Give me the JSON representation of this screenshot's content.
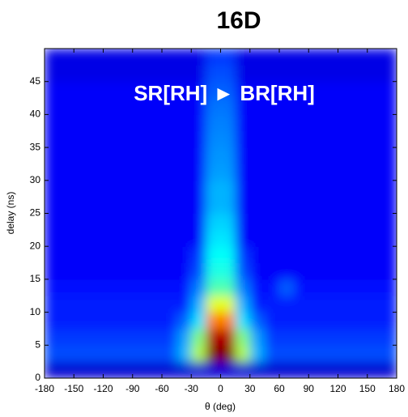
{
  "chart_data": {
    "type": "heatmap",
    "title": "16D",
    "annotation": "SR[RH] ► BR[RH]",
    "xlabel": "θ (deg)",
    "ylabel": "delay (ns)",
    "colormap": "jet",
    "xlim": [
      -180,
      180
    ],
    "ylim": [
      0,
      50
    ],
    "xticks": [
      -180,
      -150,
      -120,
      -90,
      -60,
      -30,
      0,
      30,
      60,
      90,
      120,
      150,
      180
    ],
    "yticks": [
      0,
      5,
      10,
      15,
      20,
      25,
      30,
      35,
      40,
      45
    ],
    "z": [
      [
        0.08,
        0.08,
        0.08,
        0.08,
        0.08,
        0.08,
        0.08,
        0.08,
        0.08,
        0.08,
        0.08,
        0.08,
        0.08,
        0.08,
        0.08,
        0.08,
        0.08,
        0.08,
        0.08,
        0.08,
        0.08,
        0.08,
        0.08,
        0.08
      ],
      [
        0.2,
        0.2,
        0.2,
        0.2,
        0.2,
        0.2,
        0.2,
        0.2,
        0.2,
        0.3,
        0.55,
        1,
        1,
        0.55,
        0.3,
        0.2,
        0.2,
        0.2,
        0.2,
        0.2,
        0.2,
        0.2,
        0.2,
        0.2
      ],
      [
        0.18,
        0.18,
        0.18,
        0.18,
        0.18,
        0.18,
        0.18,
        0.18,
        0.18,
        0.28,
        0.5,
        0.95,
        0.95,
        0.5,
        0.28,
        0.18,
        0.18,
        0.18,
        0.18,
        0.18,
        0.18,
        0.18,
        0.18,
        0.18
      ],
      [
        0.15,
        0.15,
        0.15,
        0.15,
        0.15,
        0.15,
        0.15,
        0.15,
        0.15,
        0.22,
        0.35,
        0.75,
        0.75,
        0.35,
        0.22,
        0.15,
        0.15,
        0.15,
        0.15,
        0.15,
        0.15,
        0.15,
        0.15,
        0.15
      ],
      [
        0.15,
        0.15,
        0.15,
        0.15,
        0.15,
        0.15,
        0.15,
        0.15,
        0.15,
        0.15,
        0.3,
        0.6,
        0.6,
        0.3,
        0.15,
        0.15,
        0.15,
        0.15,
        0.15,
        0.15,
        0.15,
        0.15,
        0.15,
        0.15
      ],
      [
        0.14,
        0.14,
        0.14,
        0.14,
        0.14,
        0.14,
        0.14,
        0.14,
        0.14,
        0.14,
        0.25,
        0.45,
        0.45,
        0.25,
        0.14,
        0.14,
        0.22,
        0.14,
        0.14,
        0.14,
        0.14,
        0.14,
        0.14,
        0.14
      ],
      [
        0.12,
        0.12,
        0.12,
        0.12,
        0.12,
        0.12,
        0.12,
        0.12,
        0.12,
        0.12,
        0.2,
        0.4,
        0.4,
        0.2,
        0.12,
        0.12,
        0.12,
        0.12,
        0.12,
        0.12,
        0.12,
        0.12,
        0.12,
        0.12
      ],
      [
        0.12,
        0.12,
        0.12,
        0.12,
        0.12,
        0.12,
        0.12,
        0.12,
        0.12,
        0.12,
        0.18,
        0.38,
        0.38,
        0.18,
        0.12,
        0.12,
        0.12,
        0.12,
        0.12,
        0.12,
        0.12,
        0.12,
        0.12,
        0.12
      ],
      [
        0.12,
        0.12,
        0.12,
        0.12,
        0.12,
        0.12,
        0.12,
        0.12,
        0.12,
        0.12,
        0.12,
        0.35,
        0.35,
        0.12,
        0.12,
        0.12,
        0.12,
        0.12,
        0.12,
        0.12,
        0.12,
        0.12,
        0.12,
        0.12
      ],
      [
        0.12,
        0.12,
        0.12,
        0.12,
        0.12,
        0.12,
        0.12,
        0.12,
        0.12,
        0.12,
        0.12,
        0.33,
        0.33,
        0.12,
        0.12,
        0.12,
        0.12,
        0.12,
        0.12,
        0.12,
        0.12,
        0.12,
        0.12,
        0.12
      ],
      [
        0.12,
        0.12,
        0.12,
        0.12,
        0.12,
        0.12,
        0.12,
        0.12,
        0.12,
        0.12,
        0.12,
        0.3,
        0.3,
        0.12,
        0.12,
        0.12,
        0.12,
        0.12,
        0.12,
        0.12,
        0.12,
        0.12,
        0.12,
        0.12
      ],
      [
        0.12,
        0.12,
        0.12,
        0.12,
        0.12,
        0.12,
        0.12,
        0.12,
        0.12,
        0.12,
        0.12,
        0.3,
        0.3,
        0.12,
        0.12,
        0.12,
        0.12,
        0.12,
        0.12,
        0.12,
        0.12,
        0.12,
        0.12,
        0.12
      ],
      [
        0.12,
        0.12,
        0.12,
        0.12,
        0.12,
        0.12,
        0.12,
        0.12,
        0.12,
        0.12,
        0.12,
        0.28,
        0.28,
        0.12,
        0.12,
        0.12,
        0.12,
        0.12,
        0.12,
        0.12,
        0.12,
        0.12,
        0.12,
        0.12
      ],
      [
        0.12,
        0.12,
        0.12,
        0.12,
        0.12,
        0.12,
        0.12,
        0.12,
        0.12,
        0.12,
        0.12,
        0.27,
        0.27,
        0.12,
        0.12,
        0.12,
        0.12,
        0.12,
        0.12,
        0.12,
        0.12,
        0.12,
        0.12,
        0.12
      ],
      [
        0.12,
        0.12,
        0.12,
        0.12,
        0.12,
        0.12,
        0.12,
        0.12,
        0.12,
        0.12,
        0.12,
        0.26,
        0.26,
        0.12,
        0.12,
        0.12,
        0.12,
        0.12,
        0.12,
        0.12,
        0.12,
        0.12,
        0.12,
        0.12
      ],
      [
        0.12,
        0.12,
        0.12,
        0.12,
        0.12,
        0.12,
        0.12,
        0.12,
        0.12,
        0.12,
        0.12,
        0.25,
        0.25,
        0.12,
        0.12,
        0.12,
        0.12,
        0.12,
        0.12,
        0.12,
        0.12,
        0.12,
        0.12,
        0.12
      ],
      [
        0.12,
        0.12,
        0.12,
        0.12,
        0.12,
        0.12,
        0.12,
        0.12,
        0.12,
        0.12,
        0.12,
        0.24,
        0.24,
        0.12,
        0.12,
        0.12,
        0.12,
        0.12,
        0.12,
        0.12,
        0.12,
        0.12,
        0.12,
        0.12
      ],
      [
        0.12,
        0.12,
        0.12,
        0.12,
        0.12,
        0.12,
        0.12,
        0.12,
        0.12,
        0.12,
        0.12,
        0.22,
        0.22,
        0.12,
        0.12,
        0.12,
        0.12,
        0.12,
        0.12,
        0.12,
        0.12,
        0.12,
        0.12,
        0.12
      ],
      [
        0.1,
        0.1,
        0.1,
        0.1,
        0.1,
        0.1,
        0.1,
        0.1,
        0.1,
        0.1,
        0.1,
        0.2,
        0.2,
        0.1,
        0.1,
        0.1,
        0.1,
        0.1,
        0.1,
        0.1,
        0.1,
        0.1,
        0.1,
        0.1
      ],
      [
        0.1,
        0.1,
        0.1,
        0.1,
        0.1,
        0.1,
        0.1,
        0.1,
        0.1,
        0.1,
        0.1,
        0.18,
        0.18,
        0.1,
        0.1,
        0.1,
        0.1,
        0.1,
        0.1,
        0.1,
        0.1,
        0.1,
        0.1,
        0.1
      ]
    ]
  }
}
